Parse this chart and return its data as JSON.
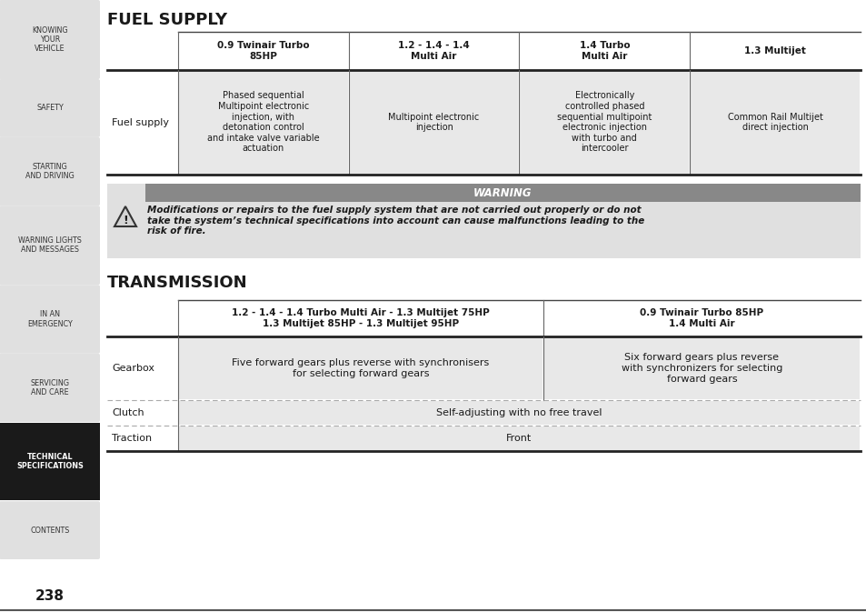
{
  "page_bg": "#ffffff",
  "sidebar_bg": "#e0e0e0",
  "sidebar_active_bg": "#1a1a1a",
  "sidebar_active_fg": "#ffffff",
  "sidebar_fg": "#333333",
  "sidebar_items": [
    "KNOWING\nYOUR\nVEHICLE",
    "SAFETY",
    "STARTING\nAND DRIVING",
    "WARNING LIGHTS\nAND MESSAGES",
    "IN AN\nEMERGENCY",
    "SERVICING\nAND CARE",
    "TECHNICAL\nSPECIFICATIONS",
    "CONTENTS"
  ],
  "sidebar_active_index": 6,
  "page_number": "238",
  "fuel_supply_title": "FUEL SUPPLY",
  "transmission_title": "TRANSMISSION",
  "fs_col_headers": [
    "0.9 Twinair Turbo\n85HP",
    "1.2 - 1.4 - 1.4\nMulti Air",
    "1.4 Turbo\nMulti Air",
    "1.3 Multijet"
  ],
  "fs_row_label": "Fuel supply",
  "fs_cells": [
    "Phased sequential\nMultipoint electronic\ninjection, with\ndetonation control\nand intake valve variable\nactuation",
    "Multipoint electronic\ninjection",
    "Electronically\ncontrolled phased\nsequential multipoint\nelectronic injection\nwith turbo and\nintercooler",
    "Common Rail Multijet\ndirect injection"
  ],
  "warning_title": "WARNING",
  "warning_text": "Modifications or repairs to the fuel supply system that are not carried out properly or do not\ntake the system’s technical specifications into account can cause malfunctions leading to the\nrisk of fire.",
  "trans_col_headers": [
    "1.2 - 1.4 - 1.4 Turbo Multi Air - 1.3 Multijet 75HP\n1.3 Multijet 85HP - 1.3 Multijet 95HP",
    "0.9 Twinair Turbo 85HP\n1.4 Multi Air"
  ],
  "trans_row_labels": [
    "Gearbox",
    "Clutch",
    "Traction"
  ],
  "trans_cells": [
    [
      "Five forward gears plus reverse with synchronisers\nfor selecting forward gears",
      "Six forward gears plus reverse\nwith synchronizers for selecting\nforward gears"
    ],
    [
      "Self-adjusting with no free travel",
      ""
    ],
    [
      "Front",
      ""
    ]
  ],
  "cell_bg": "#e8e8e8",
  "header_line_color": "#666666",
  "table_line_color": "#888888",
  "warning_header_bg": "#888888",
  "warning_header_fg": "#ffffff",
  "warning_box_bg": "#e0e0e0",
  "sidebar_item_heights": [
    75,
    55,
    65,
    75,
    65,
    65,
    75,
    55
  ]
}
